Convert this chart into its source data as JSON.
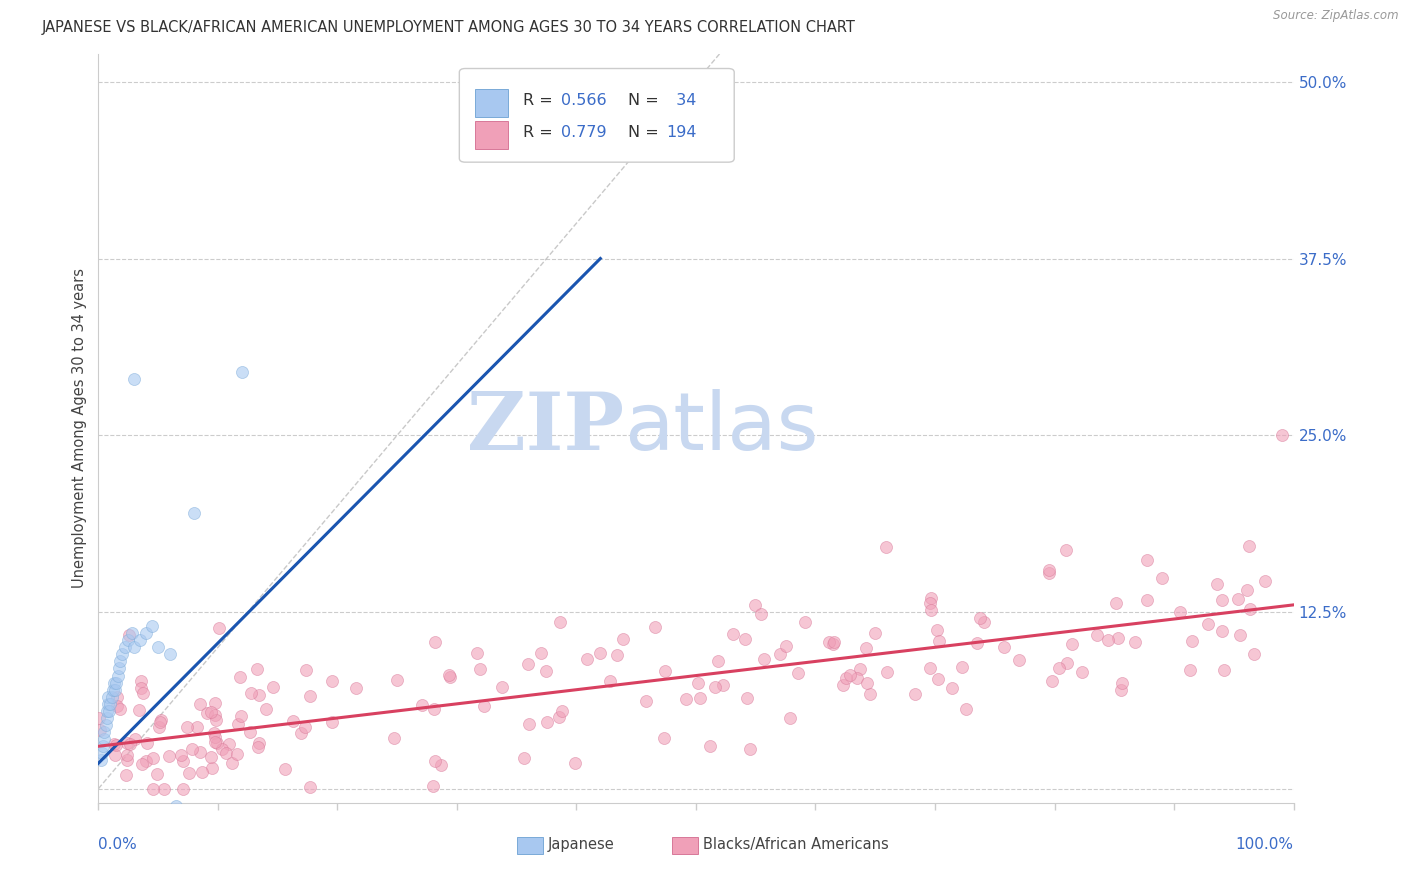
{
  "title": "JAPANESE VS BLACK/AFRICAN AMERICAN UNEMPLOYMENT AMONG AGES 30 TO 34 YEARS CORRELATION CHART",
  "source": "Source: ZipAtlas.com",
  "ylabel": "Unemployment Among Ages 30 to 34 years",
  "xlim": [
    0.0,
    1.0
  ],
  "ylim": [
    -0.01,
    0.52
  ],
  "japanese_color": "#A8C8F0",
  "japanese_edge": "#7AAAD8",
  "black_color": "#F0A0B8",
  "black_edge": "#D87898",
  "blue_line_color": "#1A55B0",
  "pink_line_color": "#D84060",
  "diag_line_color": "#BBBBBB",
  "R_japanese": 0.566,
  "N_japanese": 34,
  "R_black": 0.779,
  "N_black": 194,
  "legend_japanese": "Japanese",
  "legend_black": "Blacks/African Americans",
  "watermark_zip": "ZIP",
  "watermark_atlas": "atlas",
  "watermark_color": "#C8D8F0",
  "background_color": "#FFFFFF",
  "title_fontsize": 10.5,
  "source_fontsize": 9,
  "marker_size": 75,
  "marker_alpha": 0.6
}
